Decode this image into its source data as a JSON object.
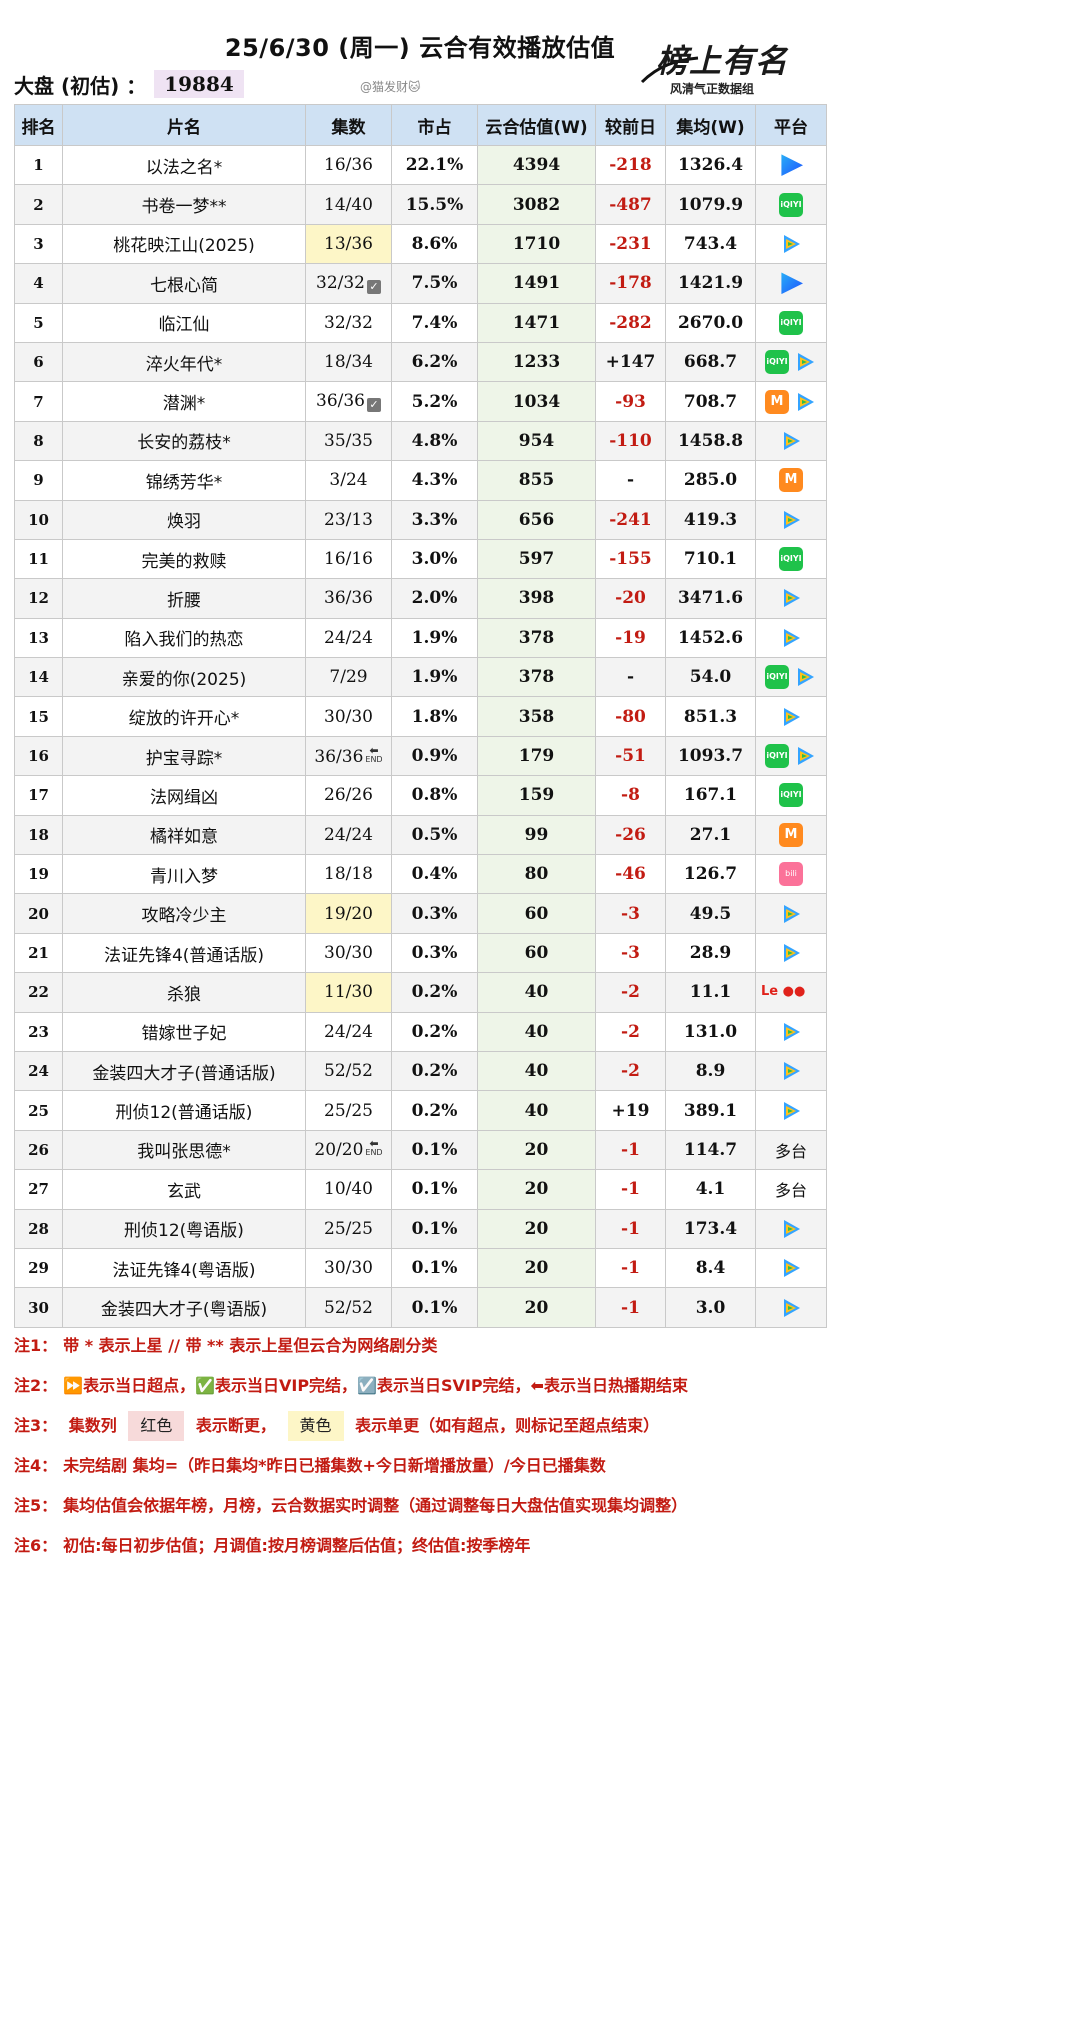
{
  "header": {
    "title": "25/6/30 (周一) 云合有效播放估值",
    "total_label": "大盘 (初估) ：",
    "total_value": "19884",
    "watermark_handle": "@猫发财🐱",
    "logo_main": "榜上有名",
    "logo_sub": "风清气正数据组"
  },
  "columns": [
    "排名",
    "片名",
    "集数",
    "市占",
    "云合估值(W)",
    "较前日",
    "集均(W)",
    "平台"
  ],
  "rows": [
    {
      "rank": "1",
      "title": "以法之名*",
      "eps": "16/36",
      "share": "22.1%",
      "est": "4394",
      "delta": "-218",
      "avg": "1326.4",
      "platforms": [
        "youku-icon"
      ]
    },
    {
      "rank": "2",
      "title": "书卷一梦**",
      "eps": "14/40",
      "share": "15.5%",
      "est": "3082",
      "delta": "-487",
      "avg": "1079.9",
      "platforms": [
        "iqiyi-icon"
      ]
    },
    {
      "rank": "3",
      "title": "桃花映江山(2025)",
      "eps": "13/36",
      "share": "8.6%",
      "est": "1710",
      "delta": "-231",
      "avg": "743.4",
      "platforms": [
        "tencent-video-icon"
      ],
      "eps_hl": "yellow"
    },
    {
      "rank": "4",
      "title": "七根心简",
      "eps": "32/32",
      "share": "7.5%",
      "est": "1491",
      "delta": "-178",
      "avg": "1421.9",
      "platforms": [
        "youku-icon"
      ],
      "eps_mark": "svip"
    },
    {
      "rank": "5",
      "title": "临江仙",
      "eps": "32/32",
      "share": "7.4%",
      "est": "1471",
      "delta": "-282",
      "avg": "2670.0",
      "platforms": [
        "iqiyi-icon"
      ]
    },
    {
      "rank": "6",
      "title": "淬火年代*",
      "eps": "18/34",
      "share": "6.2%",
      "est": "1233",
      "delta": "+147",
      "avg": "668.7",
      "platforms": [
        "iqiyi-icon",
        "tencent-video-icon"
      ]
    },
    {
      "rank": "7",
      "title": "潜渊*",
      "eps": "36/36",
      "share": "5.2%",
      "est": "1034",
      "delta": "-93",
      "avg": "708.7",
      "platforms": [
        "mango-tv-icon",
        "tencent-video-icon"
      ],
      "eps_mark": "svip"
    },
    {
      "rank": "8",
      "title": "长安的荔枝*",
      "eps": "35/35",
      "share": "4.8%",
      "est": "954",
      "delta": "-110",
      "avg": "1458.8",
      "platforms": [
        "tencent-video-icon"
      ]
    },
    {
      "rank": "9",
      "title": "锦绣芳华*",
      "eps": "3/24",
      "share": "4.3%",
      "est": "855",
      "delta": "-",
      "avg": "285.0",
      "platforms": [
        "mango-tv-icon"
      ]
    },
    {
      "rank": "10",
      "title": "焕羽",
      "eps": "23/13",
      "share": "3.3%",
      "est": "656",
      "delta": "-241",
      "avg": "419.3",
      "platforms": [
        "tencent-video-icon"
      ]
    },
    {
      "rank": "11",
      "title": "完美的救赎",
      "eps": "16/16",
      "share": "3.0%",
      "est": "597",
      "delta": "-155",
      "avg": "710.1",
      "platforms": [
        "iqiyi-icon"
      ]
    },
    {
      "rank": "12",
      "title": "折腰",
      "eps": "36/36",
      "share": "2.0%",
      "est": "398",
      "delta": "-20",
      "avg": "3471.6",
      "platforms": [
        "tencent-video-icon"
      ]
    },
    {
      "rank": "13",
      "title": "陷入我们的热恋",
      "eps": "24/24",
      "share": "1.9%",
      "est": "378",
      "delta": "-19",
      "avg": "1452.6",
      "platforms": [
        "tencent-video-icon"
      ]
    },
    {
      "rank": "14",
      "title": "亲爱的你(2025)",
      "eps": "7/29",
      "share": "1.9%",
      "est": "378",
      "delta": "-",
      "avg": "54.0",
      "platforms": [
        "iqiyi-icon",
        "tencent-video-icon"
      ]
    },
    {
      "rank": "15",
      "title": "绽放的许开心*",
      "eps": "30/30",
      "share": "1.8%",
      "est": "358",
      "delta": "-80",
      "avg": "851.3",
      "platforms": [
        "tencent-video-icon"
      ]
    },
    {
      "rank": "16",
      "title": "护宝寻踪*",
      "eps": "36/36",
      "share": "0.9%",
      "est": "179",
      "delta": "-51",
      "avg": "1093.7",
      "platforms": [
        "iqiyi-icon",
        "tencent-video-icon"
      ],
      "eps_mark": "end"
    },
    {
      "rank": "17",
      "title": "法网缉凶",
      "eps": "26/26",
      "share": "0.8%",
      "est": "159",
      "delta": "-8",
      "avg": "167.1",
      "platforms": [
        "iqiyi-icon"
      ]
    },
    {
      "rank": "18",
      "title": "橘祥如意",
      "eps": "24/24",
      "share": "0.5%",
      "est": "99",
      "delta": "-26",
      "avg": "27.1",
      "platforms": [
        "mango-tv-icon"
      ]
    },
    {
      "rank": "19",
      "title": "青川入梦",
      "eps": "18/18",
      "share": "0.4%",
      "est": "80",
      "delta": "-46",
      "avg": "126.7",
      "platforms": [
        "bilibili-icon"
      ]
    },
    {
      "rank": "20",
      "title": "攻略冷少主",
      "eps": "19/20",
      "share": "0.3%",
      "est": "60",
      "delta": "-3",
      "avg": "49.5",
      "platforms": [
        "tencent-video-icon"
      ],
      "eps_hl": "yellow"
    },
    {
      "rank": "21",
      "title": "法证先锋4(普通话版)",
      "eps": "30/30",
      "share": "0.3%",
      "est": "60",
      "delta": "-3",
      "avg": "28.9",
      "platforms": [
        "tencent-video-icon"
      ]
    },
    {
      "rank": "22",
      "title": "杀狼",
      "eps": "11/30",
      "share": "0.2%",
      "est": "40",
      "delta": "-2",
      "avg": "11.1",
      "platforms": [
        "letv-icon"
      ],
      "eps_hl": "yellow"
    },
    {
      "rank": "23",
      "title": "错嫁世子妃",
      "eps": "24/24",
      "share": "0.2%",
      "est": "40",
      "delta": "-2",
      "avg": "131.0",
      "platforms": [
        "tencent-video-icon"
      ]
    },
    {
      "rank": "24",
      "title": "金装四大才子(普通话版)",
      "eps": "52/52",
      "share": "0.2%",
      "est": "40",
      "delta": "-2",
      "avg": "8.9",
      "platforms": [
        "tencent-video-icon"
      ]
    },
    {
      "rank": "25",
      "title": "刑侦12(普通话版)",
      "eps": "25/25",
      "share": "0.2%",
      "est": "40",
      "delta": "+19",
      "avg": "389.1",
      "platforms": [
        "tencent-video-icon"
      ]
    },
    {
      "rank": "26",
      "title": "我叫张思德*",
      "eps": "20/20",
      "share": "0.1%",
      "est": "20",
      "delta": "-1",
      "avg": "114.7",
      "platform_text": "多台",
      "eps_mark": "end"
    },
    {
      "rank": "27",
      "title": "玄武",
      "eps": "10/40",
      "share": "0.1%",
      "est": "20",
      "delta": "-1",
      "avg": "4.1",
      "platform_text": "多台"
    },
    {
      "rank": "28",
      "title": "刑侦12(粤语版)",
      "eps": "25/25",
      "share": "0.1%",
      "est": "20",
      "delta": "-1",
      "avg": "173.4",
      "platforms": [
        "tencent-video-icon"
      ]
    },
    {
      "rank": "29",
      "title": "法证先锋4(粤语版)",
      "eps": "30/30",
      "share": "0.1%",
      "est": "20",
      "delta": "-1",
      "avg": "8.4",
      "platforms": [
        "tencent-video-icon"
      ]
    },
    {
      "rank": "30",
      "title": "金装四大才子(粤语版)",
      "eps": "52/52",
      "share": "0.1%",
      "est": "20",
      "delta": "-1",
      "avg": "3.0",
      "platforms": [
        "tencent-video-icon"
      ]
    }
  ],
  "notes": {
    "n1_key": "注1：",
    "n1_text": "带 * 表示上星 // 带 ** 表示上星但云合为网络剧分类",
    "n2_key": "注2：",
    "n2_text": "⏩表示当日超点，✅表示当日VIP完结，☑️表示当日SVIP完结，⬅表示当日热播期结束",
    "n3_key": "注3：",
    "n3_a": "集数列",
    "n3_red": "红色",
    "n3_b": "表示断更，",
    "n3_yellow": "黄色",
    "n3_c": "表示单更（如有超点，则标记至超点结束）",
    "n4_key": "注4：",
    "n4_text": "未完结剧 集均=（昨日集均*昨日已播集数+今日新增播放量）/今日已播集数",
    "n5_key": "注5：",
    "n5_text": "集均估值会依据年榜，月榜，云合数据实时调整（通过调整每日大盘估值实现集均调整）",
    "n6_key": "注6：",
    "n6_text": "初估:每日初步估值；月调值:按月榜调整后估值；终估值:按季榜年"
  },
  "colors": {
    "header_bg": "#cfe1f3",
    "estimate_bg": "#eef5e8",
    "negative": "#c21b12",
    "highlight_yellow": "#fdf6c7",
    "total_bg": "#efe3f3"
  }
}
